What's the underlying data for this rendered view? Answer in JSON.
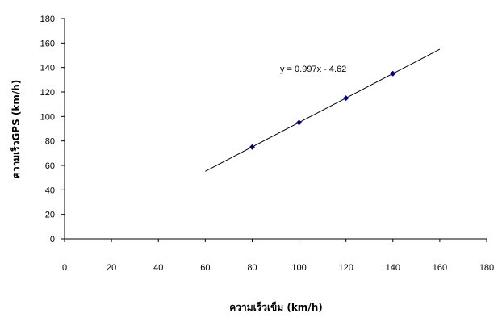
{
  "chart_data": {
    "type": "scatter",
    "xlabel": "ความเร็วเข็ม (km/h)",
    "ylabel": "ความเร็วGPS (km/h)",
    "xlim": [
      0,
      180
    ],
    "ylim": [
      0,
      180
    ],
    "xticks": [
      0,
      20,
      40,
      60,
      80,
      100,
      120,
      140,
      160,
      180
    ],
    "yticks": [
      0,
      20,
      40,
      60,
      80,
      100,
      120,
      140,
      160,
      180
    ],
    "grid": false,
    "legend": "none",
    "series": [
      {
        "x": [
          80,
          100,
          120,
          140
        ],
        "y": [
          75,
          95,
          115,
          135
        ],
        "marker": "diamond",
        "color": "#000080"
      }
    ],
    "trendline": {
      "x_range": [
        60,
        160
      ],
      "slope": 0.997,
      "intercept": -4.62,
      "color": "#000000",
      "label": "y = 0.997x - 4.62"
    }
  }
}
